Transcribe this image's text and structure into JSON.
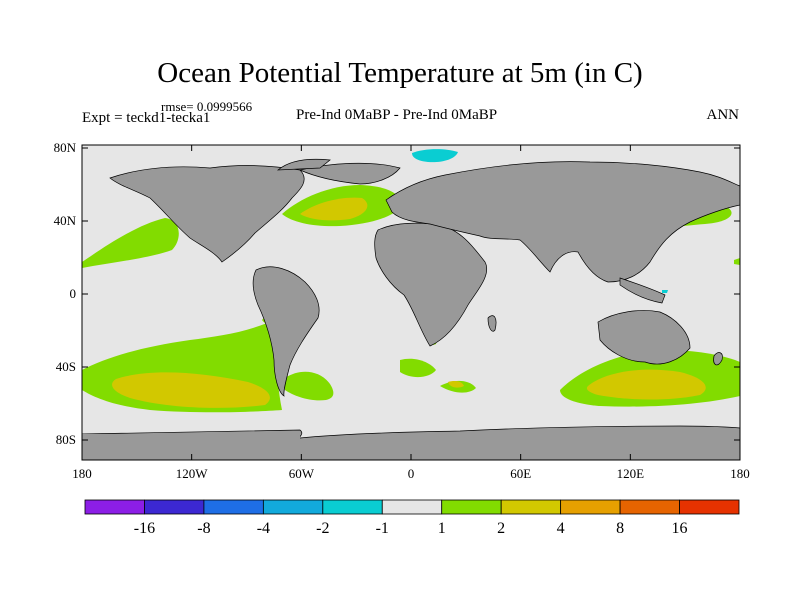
{
  "header": {
    "title": "Ocean Potential Temperature at 5m (in C)",
    "rmse": "rmse= 0.0999566",
    "expt": "Expt = teckd1-tecka1",
    "subtitle": "Pre-Ind 0MaBP - Pre-Ind 0MaBP",
    "season": "ANN"
  },
  "axes": {
    "x_ticks": [
      "180",
      "120W",
      "60W",
      "0",
      "60E",
      "120E",
      "180"
    ],
    "y_ticks": [
      "80N",
      "40N",
      "0",
      "40S",
      "80S"
    ]
  },
  "colorbar": {
    "labels": [
      "-16",
      "-8",
      "-4",
      "-2",
      "-1",
      "1",
      "2",
      "4",
      "8",
      "16"
    ],
    "colors": [
      "#8c1ee6",
      "#3c28d2",
      "#1e6ee6",
      "#12aadc",
      "#0acdd2",
      "#e6e6e6",
      "#82dc00",
      "#d2c800",
      "#e6a000",
      "#e66400",
      "#e63200"
    ]
  },
  "colors": {
    "land": "#999999",
    "ocean_neutral": "#e6e6e6",
    "positive_small": "#82dc00",
    "positive_medium": "#d2c800",
    "negative_small": "#0acdd2",
    "coast": "#000000"
  }
}
